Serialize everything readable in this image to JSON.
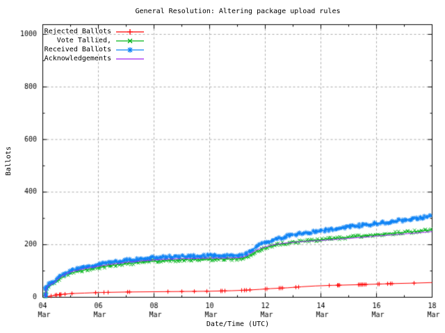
{
  "window": {
    "background": "#ffffff",
    "frame_color": "#000000"
  },
  "chart_data": {
    "type": "line",
    "title": "General Resolution: Altering package upload rules",
    "xlabel": "Date/Time (UTC)",
    "ylabel": "Ballots",
    "x_unit": "day of March (UTC)",
    "xlim_days": [
      4,
      18
    ],
    "ylim": [
      0,
      1040
    ],
    "yticks": [
      0,
      200,
      400,
      600,
      800,
      1000
    ],
    "y_minor_step": 100,
    "xtick_days": [
      4,
      6,
      8,
      10,
      12,
      14,
      16,
      18
    ],
    "xtick_labels": [
      [
        "04",
        "Mar"
      ],
      [
        "06",
        "Mar"
      ],
      [
        "08",
        "Mar"
      ],
      [
        "10",
        "Mar"
      ],
      [
        "12",
        "Mar"
      ],
      [
        "14",
        "Mar"
      ],
      [
        "16",
        "Mar"
      ],
      [
        "18",
        "Mar"
      ]
    ],
    "x_minor_step": 1,
    "grid": {
      "show": true,
      "color": "#aaaaaa",
      "dash": [
        3,
        3
      ]
    },
    "legend_position": "top-left-inside",
    "series": [
      {
        "name": "Rejected Ballots",
        "color": "#ff0000",
        "marker": "+",
        "marker_density": "sparse",
        "points": [
          [
            4.08,
            0
          ],
          [
            4.2,
            3
          ],
          [
            4.35,
            6
          ],
          [
            4.5,
            9
          ],
          [
            4.8,
            12
          ],
          [
            5.0,
            14
          ],
          [
            5.5,
            16
          ],
          [
            6.0,
            18
          ],
          [
            7.0,
            20
          ],
          [
            8.0,
            21
          ],
          [
            9.0,
            22
          ],
          [
            10.0,
            23
          ],
          [
            10.8,
            25
          ],
          [
            11.3,
            27
          ],
          [
            11.8,
            30
          ],
          [
            12.2,
            33
          ],
          [
            12.8,
            36
          ],
          [
            13.3,
            40
          ],
          [
            13.8,
            43
          ],
          [
            14.3,
            45
          ],
          [
            14.7,
            46
          ],
          [
            15.4,
            48
          ],
          [
            16.0,
            50
          ],
          [
            16.6,
            52
          ],
          [
            17.4,
            54
          ],
          [
            18.0,
            56
          ]
        ],
        "marker_days": [
          4.3,
          4.45,
          4.5,
          4.6,
          4.63,
          4.66,
          4.8,
          5.05,
          5.9,
          6.2,
          6.35,
          7.05,
          7.12,
          8.5,
          9.0,
          9.45,
          9.9,
          10.4,
          10.45,
          10.55,
          11.15,
          11.25,
          11.32,
          11.45,
          12.0,
          12.06,
          12.5,
          12.56,
          12.62,
          13.1,
          13.2,
          14.3,
          14.6,
          14.63,
          14.67,
          15.35,
          15.4,
          15.45,
          15.5,
          15.56,
          15.62,
          16.05,
          16.1,
          16.4,
          16.5,
          16.56,
          17.35
        ]
      },
      {
        "name": "Vote Tallied,",
        "color": "#00b418",
        "marker": "x",
        "marker_density": "dense",
        "points": [
          [
            4.08,
            0
          ],
          [
            4.13,
            30
          ],
          [
            4.2,
            40
          ],
          [
            4.35,
            48
          ],
          [
            4.5,
            60
          ],
          [
            4.65,
            73
          ],
          [
            4.85,
            85
          ],
          [
            5.0,
            92
          ],
          [
            5.3,
            99
          ],
          [
            5.6,
            106
          ],
          [
            6.0,
            113
          ],
          [
            6.5,
            121
          ],
          [
            7.0,
            128
          ],
          [
            7.5,
            133
          ],
          [
            8.0,
            137
          ],
          [
            8.5,
            140
          ],
          [
            9.0,
            142
          ],
          [
            9.5,
            143
          ],
          [
            10.0,
            144
          ],
          [
            10.5,
            145
          ],
          [
            11.0,
            146
          ],
          [
            11.25,
            150
          ],
          [
            11.4,
            158
          ],
          [
            11.6,
            170
          ],
          [
            11.8,
            180
          ],
          [
            12.0,
            188
          ],
          [
            12.3,
            197
          ],
          [
            12.6,
            203
          ],
          [
            13.0,
            209
          ],
          [
            13.5,
            214
          ],
          [
            14.0,
            219
          ],
          [
            14.5,
            224
          ],
          [
            15.0,
            228
          ],
          [
            15.5,
            233
          ],
          [
            16.0,
            238
          ],
          [
            16.5,
            243
          ],
          [
            17.0,
            247
          ],
          [
            17.5,
            251
          ],
          [
            18.0,
            256
          ]
        ]
      },
      {
        "name": "Received Ballots",
        "color": "#0c82f5",
        "marker": "*",
        "marker_density": "dense",
        "points": [
          [
            4.08,
            2
          ],
          [
            4.13,
            38
          ],
          [
            4.2,
            48
          ],
          [
            4.35,
            56
          ],
          [
            4.5,
            70
          ],
          [
            4.65,
            83
          ],
          [
            4.85,
            95
          ],
          [
            5.0,
            102
          ],
          [
            5.3,
            109
          ],
          [
            5.6,
            117
          ],
          [
            6.0,
            125
          ],
          [
            6.5,
            133
          ],
          [
            7.0,
            140
          ],
          [
            7.5,
            146
          ],
          [
            8.0,
            151
          ],
          [
            8.5,
            154
          ],
          [
            9.0,
            156
          ],
          [
            9.5,
            157
          ],
          [
            10.0,
            158
          ],
          [
            10.5,
            159
          ],
          [
            11.0,
            160
          ],
          [
            11.25,
            164
          ],
          [
            11.4,
            173
          ],
          [
            11.6,
            186
          ],
          [
            11.8,
            197
          ],
          [
            12.0,
            207
          ],
          [
            12.3,
            219
          ],
          [
            12.6,
            228
          ],
          [
            13.0,
            237
          ],
          [
            13.5,
            246
          ],
          [
            14.0,
            253
          ],
          [
            14.5,
            260
          ],
          [
            15.0,
            267
          ],
          [
            15.5,
            274
          ],
          [
            16.0,
            281
          ],
          [
            16.5,
            288
          ],
          [
            17.0,
            294
          ],
          [
            17.5,
            301
          ],
          [
            18.0,
            308
          ]
        ]
      },
      {
        "name": "Acknowledgements",
        "color": "#a020f0",
        "marker": "none",
        "marker_density": "none",
        "points": [
          [
            4.08,
            0
          ],
          [
            4.13,
            34
          ],
          [
            4.2,
            44
          ],
          [
            4.35,
            52
          ],
          [
            4.5,
            65
          ],
          [
            4.65,
            78
          ],
          [
            4.85,
            90
          ],
          [
            5.0,
            97
          ],
          [
            5.3,
            104
          ],
          [
            5.6,
            111
          ],
          [
            6.0,
            118
          ],
          [
            6.5,
            126
          ],
          [
            7.0,
            133
          ],
          [
            7.5,
            138
          ],
          [
            8.0,
            142
          ],
          [
            8.5,
            145
          ],
          [
            9.0,
            147
          ],
          [
            9.5,
            148
          ],
          [
            10.0,
            149
          ],
          [
            10.5,
            149
          ],
          [
            11.0,
            150
          ],
          [
            11.25,
            154
          ],
          [
            11.4,
            163
          ],
          [
            11.6,
            175
          ],
          [
            11.8,
            185
          ],
          [
            12.0,
            192
          ],
          [
            12.3,
            200
          ],
          [
            12.6,
            205
          ],
          [
            13.0,
            209
          ],
          [
            13.5,
            213
          ],
          [
            14.0,
            216
          ],
          [
            14.5,
            220
          ],
          [
            15.0,
            224
          ],
          [
            15.5,
            228
          ],
          [
            16.0,
            233
          ],
          [
            16.5,
            237
          ],
          [
            17.0,
            241
          ],
          [
            17.5,
            245
          ],
          [
            18.0,
            250
          ]
        ]
      }
    ]
  }
}
